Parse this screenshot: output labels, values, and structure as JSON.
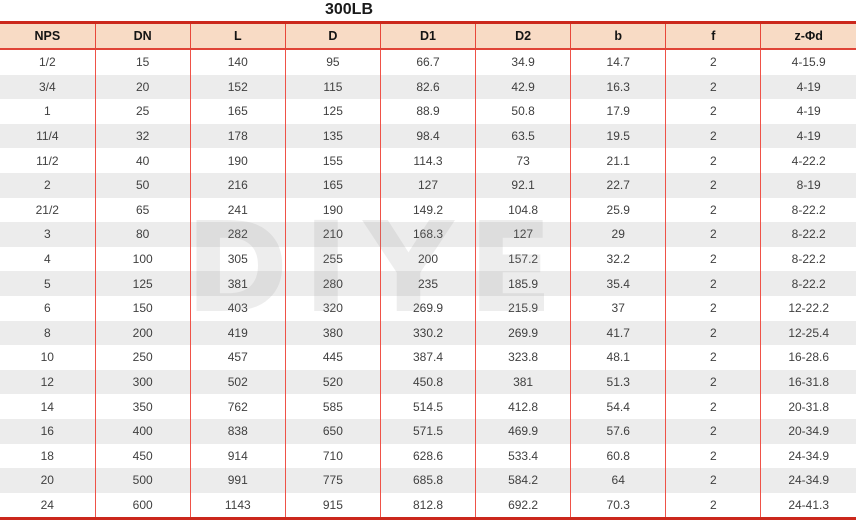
{
  "title": "300LB",
  "watermark": "DIYE",
  "colors": {
    "header_bg": "#f8dbc5",
    "grid_red": "#e8473a",
    "outer_red": "#cb281c",
    "stripe_gray": "#ececec",
    "body_text": "#404040"
  },
  "table": {
    "columns": [
      "NPS",
      "DN",
      "L",
      "D",
      "D1",
      "D2",
      "b",
      "f",
      "z-Φd"
    ],
    "rows": [
      [
        "1/2",
        "15",
        "140",
        "95",
        "66.7",
        "34.9",
        "14.7",
        "2",
        "4-15.9"
      ],
      [
        "3/4",
        "20",
        "152",
        "115",
        "82.6",
        "42.9",
        "16.3",
        "2",
        "4-19"
      ],
      [
        "1",
        "25",
        "165",
        "125",
        "88.9",
        "50.8",
        "17.9",
        "2",
        "4-19"
      ],
      [
        "11/4",
        "32",
        "178",
        "135",
        "98.4",
        "63.5",
        "19.5",
        "2",
        "4-19"
      ],
      [
        "11/2",
        "40",
        "190",
        "155",
        "114.3",
        "73",
        "21.1",
        "2",
        "4-22.2"
      ],
      [
        "2",
        "50",
        "216",
        "165",
        "127",
        "92.1",
        "22.7",
        "2",
        "8-19"
      ],
      [
        "21/2",
        "65",
        "241",
        "190",
        "149.2",
        "104.8",
        "25.9",
        "2",
        "8-22.2"
      ],
      [
        "3",
        "80",
        "282",
        "210",
        "168.3",
        "127",
        "29",
        "2",
        "8-22.2"
      ],
      [
        "4",
        "100",
        "305",
        "255",
        "200",
        "157.2",
        "32.2",
        "2",
        "8-22.2"
      ],
      [
        "5",
        "125",
        "381",
        "280",
        "235",
        "185.9",
        "35.4",
        "2",
        "8-22.2"
      ],
      [
        "6",
        "150",
        "403",
        "320",
        "269.9",
        "215.9",
        "37",
        "2",
        "12-22.2"
      ],
      [
        "8",
        "200",
        "419",
        "380",
        "330.2",
        "269.9",
        "41.7",
        "2",
        "12-25.4"
      ],
      [
        "10",
        "250",
        "457",
        "445",
        "387.4",
        "323.8",
        "48.1",
        "2",
        "16-28.6"
      ],
      [
        "12",
        "300",
        "502",
        "520",
        "450.8",
        "381",
        "51.3",
        "2",
        "16-31.8"
      ],
      [
        "14",
        "350",
        "762",
        "585",
        "514.5",
        "412.8",
        "54.4",
        "2",
        "20-31.8"
      ],
      [
        "16",
        "400",
        "838",
        "650",
        "571.5",
        "469.9",
        "57.6",
        "2",
        "20-34.9"
      ],
      [
        "18",
        "450",
        "914",
        "710",
        "628.6",
        "533.4",
        "60.8",
        "2",
        "24-34.9"
      ],
      [
        "20",
        "500",
        "991",
        "775",
        "685.8",
        "584.2",
        "64",
        "2",
        "24-34.9"
      ],
      [
        "24",
        "600",
        "1143",
        "915",
        "812.8",
        "692.2",
        "70.3",
        "2",
        "24-41.3"
      ]
    ]
  }
}
